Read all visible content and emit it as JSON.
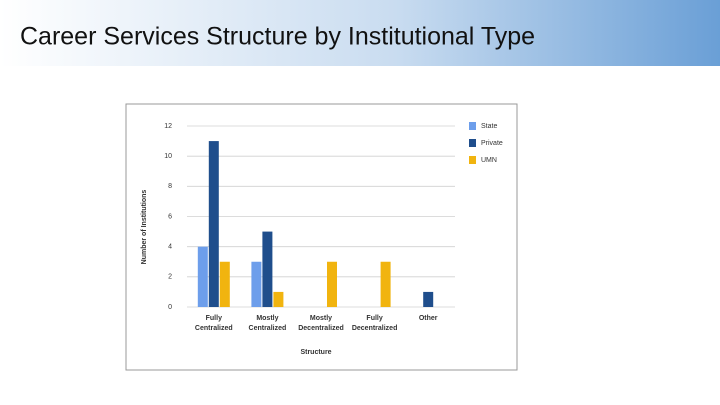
{
  "chart_data": {
    "type": "bar",
    "title": "Career Services Structure by Institutional Type",
    "categories": [
      "Fully Centralized",
      "Mostly Centralized",
      "Mostly Decentralized",
      "Fully Decentralized",
      "Other"
    ],
    "series": [
      {
        "name": "State",
        "color": "#6d9eeb",
        "values": [
          4,
          3,
          0,
          0,
          0
        ]
      },
      {
        "name": "Private",
        "color": "#1f4e8c",
        "values": [
          11,
          5,
          0,
          0,
          1
        ]
      },
      {
        "name": "UMN",
        "color": "#f1b40f",
        "values": [
          3,
          1,
          3,
          3,
          0
        ]
      }
    ],
    "ylim": [
      0,
      12
    ],
    "yticks": [
      0,
      2,
      4,
      6,
      8,
      10,
      12
    ],
    "grid": true,
    "y_label": "Number of Institutions",
    "x_label": "Structure",
    "legend": "right"
  }
}
